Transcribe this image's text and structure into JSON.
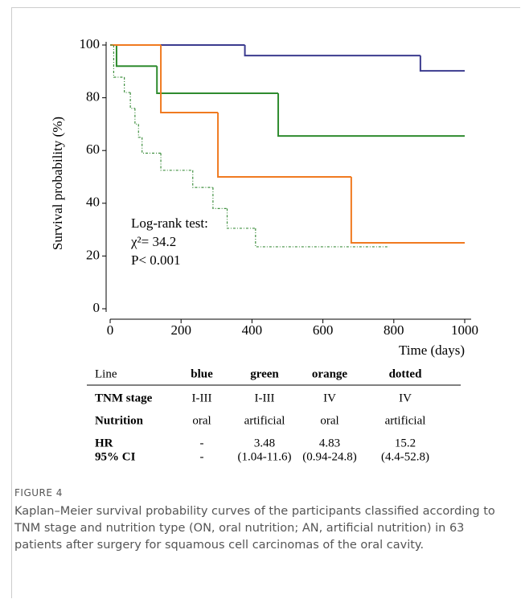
{
  "chart_data": {
    "type": "step",
    "y_label": "Survival probability (%)",
    "x_label": "Time (days)",
    "xlim": [
      0,
      1000
    ],
    "ylim": [
      0,
      100
    ],
    "xticks": [
      0,
      200,
      400,
      600,
      800,
      1000
    ],
    "yticks": [
      0,
      20,
      40,
      60,
      80,
      100
    ],
    "annotations": [
      "Log-rank test:",
      "χ²= 34.2",
      "P< 0.001"
    ],
    "series": [
      {
        "color": "#3b3b8f",
        "dash": "none",
        "x": [
          0,
          380,
          875,
          1000
        ],
        "values": [
          100,
          96,
          90.2,
          90.2
        ]
      },
      {
        "color": "#2e8b2e",
        "dash": "none",
        "x": [
          0,
          18,
          132,
          474,
          1000
        ],
        "values": [
          100,
          92,
          81.7,
          65.5,
          65.5
        ]
      },
      {
        "color": "#f07a20",
        "dash": "none",
        "x": [
          0,
          143,
          304,
          680,
          1000
        ],
        "values": [
          100,
          74.4,
          50,
          25,
          25
        ]
      },
      {
        "color": "#3f8f3f",
        "dash": "3 2 1 2",
        "x": [
          0,
          10,
          40,
          57,
          70,
          80,
          90,
          143,
          233,
          290,
          330,
          410,
          787
        ],
        "values": [
          100,
          87.8,
          82,
          76,
          70,
          65,
          59,
          52.5,
          46,
          38,
          30.5,
          23.5,
          23.5
        ]
      }
    ]
  },
  "table": {
    "header": [
      "Line",
      "blue",
      "green",
      "orange",
      "dotted"
    ],
    "header_colors": [
      "#000000",
      "#1f4e8c",
      "#3a7a2a",
      "#f0883a",
      "#000000"
    ],
    "rows": [
      [
        "TNM stage",
        "I-III",
        "I-III",
        "IV",
        "IV"
      ],
      [
        "Nutrition",
        "oral",
        "artificial",
        "oral",
        "artificial"
      ],
      [
        "HR",
        "-",
        "3.48",
        "4.83",
        "15.2"
      ],
      [
        "95% CI",
        "-",
        "(1.04-11.6)",
        "(0.94-24.8)",
        "(4.4-52.8)"
      ]
    ]
  },
  "figure": {
    "label": "FIGURE 4",
    "caption": "Kaplan–Meier survival probability curves of the participants classified according to TNM stage and nutrition type (ON, oral nutrition; AN, artificial nutrition) in 63 patients after surgery for squamous cell carcinomas of the oral cavity."
  }
}
